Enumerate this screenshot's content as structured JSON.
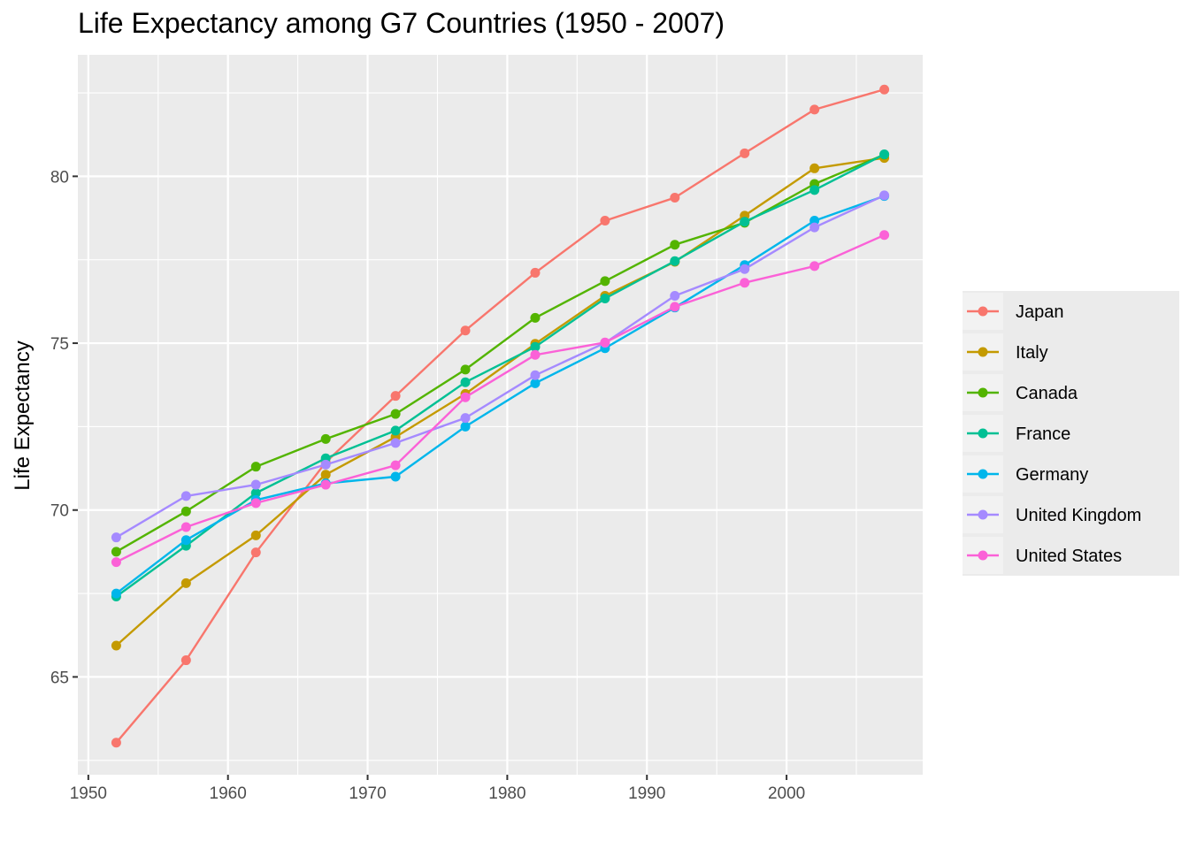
{
  "chart_data": {
    "type": "line",
    "title": "Life Expectancy among G7 Countries (1950 - 2007)",
    "xlabel": "",
    "ylabel": "Life Expectancy",
    "xlim": [
      1949.25,
      2009.75
    ],
    "ylim": [
      62.07,
      83.64
    ],
    "x_ticks": [
      1950,
      1960,
      1970,
      1980,
      1990,
      2000
    ],
    "y_ticks": [
      65,
      70,
      75,
      80
    ],
    "grid": true,
    "legend_position": "right",
    "x": [
      1952,
      1957,
      1962,
      1967,
      1972,
      1977,
      1982,
      1987,
      1992,
      1997,
      2002,
      2007
    ],
    "series": [
      {
        "name": "Japan",
        "color": "#F8766D",
        "values": [
          63.03,
          65.5,
          68.73,
          71.43,
          73.42,
          75.38,
          77.11,
          78.67,
          79.36,
          80.69,
          82.0,
          82.6
        ]
      },
      {
        "name": "Italy",
        "color": "#C49A00",
        "values": [
          65.94,
          67.81,
          69.24,
          71.06,
          72.19,
          73.48,
          74.98,
          76.42,
          77.44,
          78.82,
          80.24,
          80.55
        ]
      },
      {
        "name": "Canada",
        "color": "#53B400",
        "values": [
          68.75,
          69.96,
          71.3,
          72.13,
          72.88,
          74.21,
          75.76,
          76.86,
          77.95,
          78.61,
          79.77,
          80.65
        ]
      },
      {
        "name": "France",
        "color": "#00C094",
        "values": [
          67.41,
          68.93,
          70.51,
          71.55,
          72.38,
          73.83,
          74.89,
          76.34,
          77.46,
          78.64,
          79.59,
          80.66
        ]
      },
      {
        "name": "Germany",
        "color": "#00B6EB",
        "values": [
          67.5,
          69.1,
          70.3,
          70.8,
          71.0,
          72.5,
          73.8,
          74.85,
          76.07,
          77.34,
          78.67,
          79.41
        ]
      },
      {
        "name": "United Kingdom",
        "color": "#A58AFF",
        "values": [
          69.18,
          70.42,
          70.76,
          71.36,
          72.01,
          72.76,
          74.04,
          75.01,
          76.42,
          77.22,
          78.47,
          79.43
        ]
      },
      {
        "name": "United States",
        "color": "#FB61D7",
        "values": [
          68.44,
          69.49,
          70.21,
          70.76,
          71.34,
          73.38,
          74.65,
          75.02,
          76.09,
          76.81,
          77.31,
          78.24
        ]
      }
    ]
  }
}
